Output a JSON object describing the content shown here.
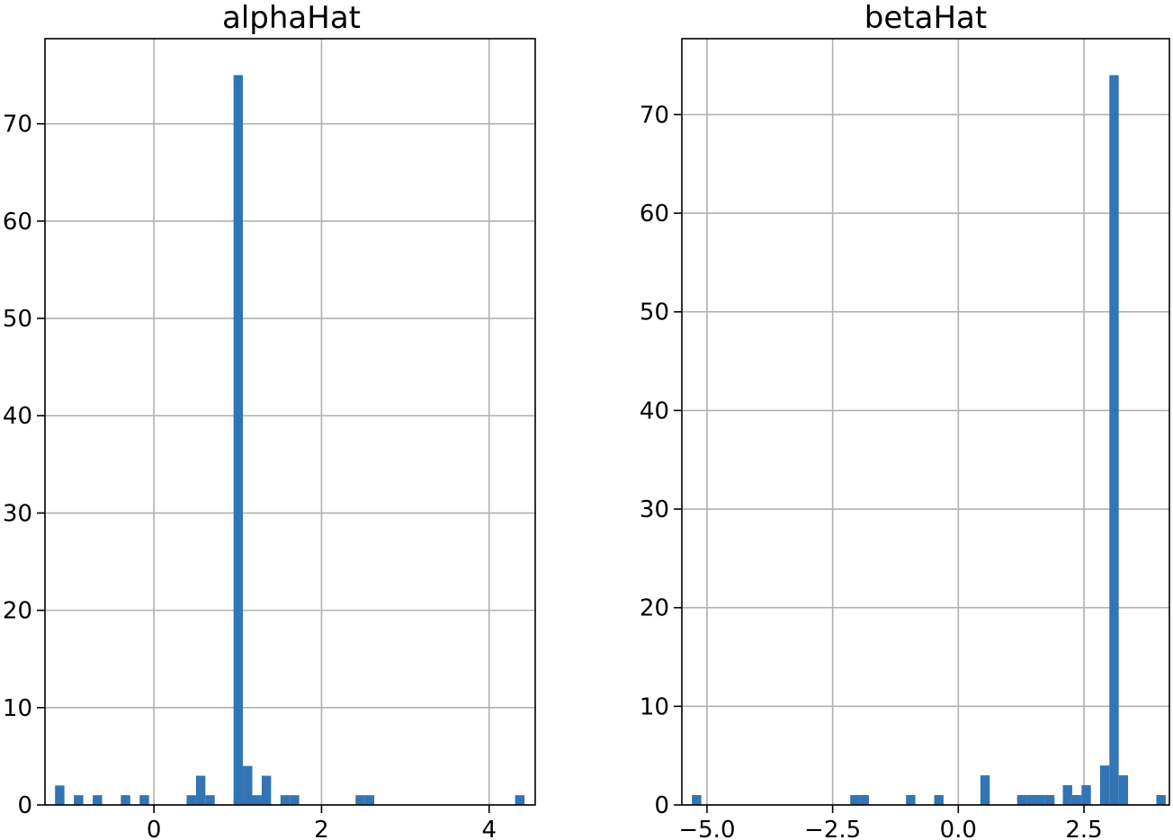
{
  "chart_data": [
    {
      "type": "bar",
      "title": "alphaHat",
      "xlabel": "",
      "ylabel": "",
      "xlim": [
        -1.3,
        4.55
      ],
      "ylim": [
        0,
        78.75
      ],
      "grid": true,
      "bar_color": "#3274b4",
      "bin_width": 0.112,
      "bins_left": [
        -1.18,
        -0.955,
        -0.73,
        -0.395,
        -0.17,
        0.39,
        0.502,
        0.614,
        0.95,
        1.062,
        1.174,
        1.286,
        1.51,
        1.622,
        2.406,
        2.518,
        4.31
      ],
      "counts": [
        2,
        1,
        1,
        1,
        1,
        1,
        3,
        1,
        75,
        4,
        1,
        3,
        1,
        1,
        1,
        1,
        1
      ],
      "x_ticks": [
        {
          "value": 0,
          "label": "0"
        },
        {
          "value": 2,
          "label": "2"
        },
        {
          "value": 4,
          "label": "4"
        }
      ],
      "y_ticks": [
        {
          "value": 0,
          "label": "0"
        },
        {
          "value": 10,
          "label": "10"
        },
        {
          "value": 20,
          "label": "20"
        },
        {
          "value": 30,
          "label": "30"
        },
        {
          "value": 40,
          "label": "40"
        },
        {
          "value": 50,
          "label": "50"
        },
        {
          "value": 60,
          "label": "60"
        },
        {
          "value": 70,
          "label": "70"
        }
      ]
    },
    {
      "type": "bar",
      "title": "betaHat",
      "xlabel": "",
      "ylabel": "",
      "xlim": [
        -5.5,
        4.2
      ],
      "ylim": [
        0,
        77.7
      ],
      "grid": true,
      "bar_color": "#3274b4",
      "bin_width": 0.186,
      "bins_left": [
        -5.3,
        -2.15,
        -1.964,
        -1.04,
        -0.48,
        0.44,
        1.17,
        1.356,
        1.542,
        1.728,
        2.08,
        2.266,
        2.452,
        2.82,
        3.006,
        3.192,
        3.94
      ],
      "counts": [
        1,
        1,
        1,
        1,
        1,
        3,
        1,
        1,
        1,
        1,
        2,
        1,
        2,
        4,
        74,
        3,
        1
      ],
      "x_ticks": [
        {
          "value": -5.0,
          "label": "−5.0"
        },
        {
          "value": -2.5,
          "label": "−2.5"
        },
        {
          "value": 0.0,
          "label": "0.0"
        },
        {
          "value": 2.5,
          "label": "2.5"
        }
      ],
      "y_ticks": [
        {
          "value": 0,
          "label": "0"
        },
        {
          "value": 10,
          "label": "10"
        },
        {
          "value": 20,
          "label": "20"
        },
        {
          "value": 30,
          "label": "30"
        },
        {
          "value": 40,
          "label": "40"
        },
        {
          "value": 50,
          "label": "50"
        },
        {
          "value": 60,
          "label": "60"
        },
        {
          "value": 70,
          "label": "70"
        }
      ]
    }
  ]
}
